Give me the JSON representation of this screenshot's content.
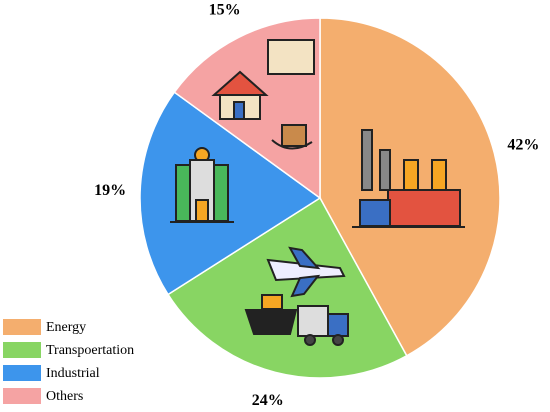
{
  "chart_data": {
    "type": "pie",
    "categories": [
      "Energy",
      "Transpoertation",
      "Industrial",
      "Others"
    ],
    "values": [
      42,
      24,
      19,
      15
    ],
    "value_labels": [
      "42%",
      "24%",
      "19%",
      "15%"
    ],
    "colors": [
      "#f4ae6e",
      "#88d563",
      "#3d95ec",
      "#f5a3a3"
    ],
    "legend": "lower left"
  }
}
